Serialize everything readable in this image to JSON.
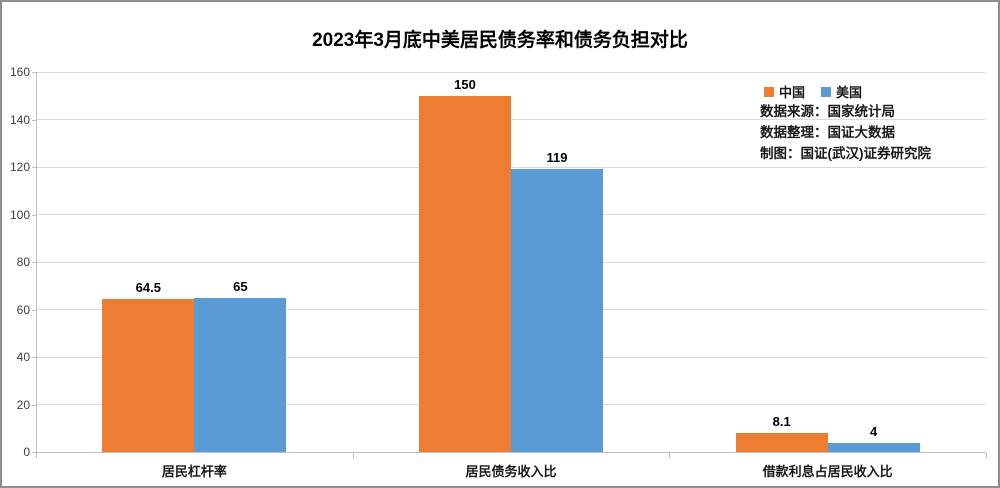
{
  "title": "2023年3月底中美居民债务率和债务负担对比",
  "legend": [
    {
      "label": "中国",
      "color": "#ED7D31"
    },
    {
      "label": "美国",
      "color": "#5B9BD5"
    }
  ],
  "source_lines": [
    "数据来源：国家统计局",
    "数据整理：国证大数据",
    "制图：国证(武汉)证券研究院"
  ],
  "colors": {
    "china": "#ED7D31",
    "usa": "#5B9BD5",
    "gridline": "#DADADA",
    "axis": "#BFBFBF",
    "frame_border": "#8E8E8E"
  },
  "chart_data": {
    "type": "bar",
    "title": "2023年3月底中美居民债务率和债务负担对比",
    "categories": [
      "居民杠杆率",
      "居民债务收入比",
      "借款利息占居民收入比"
    ],
    "series": [
      {
        "name": "中国",
        "color": "#ED7D31",
        "values": [
          64.5,
          150,
          8.1
        ]
      },
      {
        "name": "美国",
        "color": "#5B9BD5",
        "values": [
          65,
          119,
          4
        ]
      }
    ],
    "data_labels": [
      [
        "64.5",
        "150",
        "8.1"
      ],
      [
        "65",
        "119",
        "4"
      ]
    ],
    "xlabel": "",
    "ylabel": "",
    "ylim": [
      0,
      160
    ],
    "yticks": [
      0,
      20,
      40,
      60,
      80,
      100,
      120,
      140,
      160
    ],
    "grid": true,
    "legend_position": "top-right"
  }
}
